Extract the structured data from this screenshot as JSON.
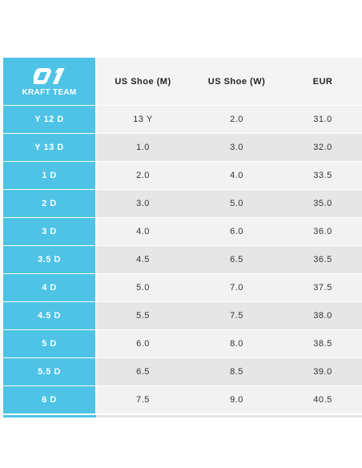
{
  "header": {
    "brand": "KRAFT TEAM",
    "col1": "US Shoe (M)",
    "col2": "US Shoe (W)",
    "col3": "EUR"
  },
  "rows": [
    {
      "size": "Y 12 D",
      "m": "13 Y",
      "w": "2.0",
      "eur": "31.0"
    },
    {
      "size": "Y 13 D",
      "m": "1.0",
      "w": "3.0",
      "eur": "32.0"
    },
    {
      "size": "1 D",
      "m": "2.0",
      "w": "4.0",
      "eur": "33.5"
    },
    {
      "size": "2 D",
      "m": "3.0",
      "w": "5.0",
      "eur": "35.0"
    },
    {
      "size": "3 D",
      "m": "4.0",
      "w": "6.0",
      "eur": "36.0"
    },
    {
      "size": "3.5 D",
      "m": "4.5",
      "w": "6.5",
      "eur": "36.5"
    },
    {
      "size": "4 D",
      "m": "5.0",
      "w": "7.0",
      "eur": "37.5"
    },
    {
      "size": "4.5 D",
      "m": "5.5",
      "w": "7.5",
      "eur": "38.0"
    },
    {
      "size": "5 D",
      "m": "6.0",
      "w": "8.0",
      "eur": "38.5"
    },
    {
      "size": "5.5 D",
      "m": "6.5",
      "w": "8.5",
      "eur": "39.0"
    },
    {
      "size": "6 D",
      "m": "7.5",
      "w": "9.0",
      "eur": "40.5"
    }
  ],
  "colors": {
    "accent": "#4ec3e6",
    "row_light": "#f2f2f2",
    "row_dark": "#e6e6e6"
  },
  "icons": {
    "brand_logo": "kraft-01-logo"
  }
}
